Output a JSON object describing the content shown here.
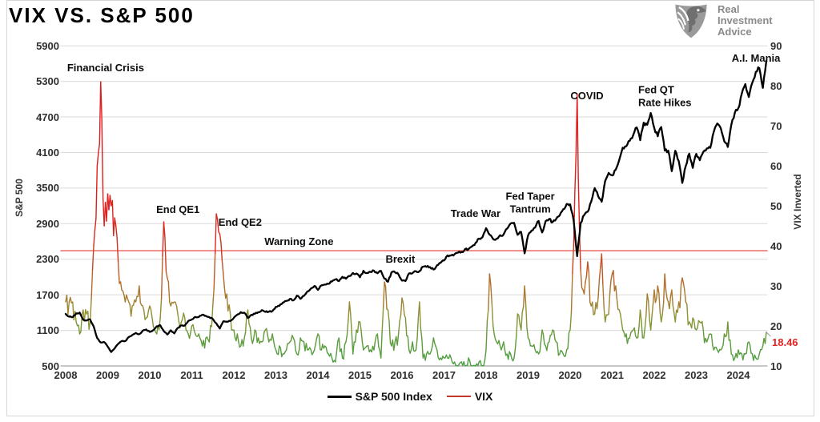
{
  "header": {
    "title": "VIX VS. S&P 500",
    "logo": {
      "line1": "Real",
      "line2": "Investment",
      "line3": "Advice"
    }
  },
  "legend": [
    {
      "label": "S&P 500 Index",
      "color": "#000000",
      "thickness": 3
    },
    {
      "label": "VIX",
      "color": "#c0392b",
      "thickness": 2
    }
  ],
  "chart_data": {
    "type": "line",
    "title": "VIX VS. S&P 500",
    "x_axis": {
      "ticks": [
        2008,
        2009,
        2010,
        2011,
        2012,
        2013,
        2014,
        2015,
        2016,
        2017,
        2018,
        2019,
        2020,
        2021,
        2022,
        2023,
        2024
      ],
      "start_year": 2008,
      "points_per_year": 12
    },
    "left_axis": {
      "label": "S&P 500",
      "range": [
        500,
        5900
      ],
      "ticks": [
        5900,
        5300,
        4700,
        4100,
        3500,
        2900,
        2300,
        1700,
        1100,
        500
      ]
    },
    "right_axis": {
      "label": "VIX Inverted",
      "range": [
        10,
        90
      ],
      "ticks": [
        90,
        80,
        70,
        60,
        50,
        40,
        30,
        20,
        10
      ]
    },
    "grid": "horizontal",
    "grid_color": "#dadada",
    "baseline_color": "#8f8f8f",
    "legend_position": "bottom-center",
    "series": [
      {
        "name": "S&P 500 Index",
        "axis": "left",
        "color": "#000000",
        "values": [
          1378,
          1331,
          1323,
          1386,
          1400,
          1280,
          1267,
          1283,
          1166,
          969,
          896,
          903,
          826,
          735,
          798,
          873,
          919,
          919,
          987,
          1021,
          1057,
          1036,
          1096,
          1115,
          1074,
          1104,
          1169,
          1187,
          1089,
          1031,
          1102,
          1049,
          1141,
          1183,
          1181,
          1258,
          1286,
          1327,
          1326,
          1364,
          1345,
          1321,
          1292,
          1219,
          1131,
          1253,
          1247,
          1258,
          1312,
          1366,
          1408,
          1398,
          1310,
          1362,
          1379,
          1407,
          1441,
          1412,
          1416,
          1426,
          1498,
          1515,
          1569,
          1598,
          1631,
          1606,
          1686,
          1633,
          1682,
          1757,
          1806,
          1848,
          1783,
          1859,
          1872,
          1884,
          1924,
          1960,
          1931,
          2003,
          1972,
          2018,
          2068,
          2059,
          1995,
          2105,
          2068,
          2086,
          2107,
          2063,
          2104,
          1972,
          1920,
          2079,
          2080,
          2044,
          1940,
          1932,
          2060,
          2065,
          2097,
          2099,
          2174,
          2171,
          2168,
          2126,
          2199,
          2239,
          2279,
          2364,
          2363,
          2384,
          2412,
          2423,
          2470,
          2472,
          2519,
          2575,
          2648,
          2674,
          2824,
          2714,
          2641,
          2648,
          2705,
          2718,
          2816,
          2902,
          2914,
          2712,
          2760,
          2400,
          2704,
          2785,
          2834,
          2946,
          2752,
          2942,
          2980,
          2926,
          2977,
          3038,
          3141,
          3231,
          3226,
          2954,
          2350,
          2912,
          3044,
          3100,
          3271,
          3500,
          3363,
          3270,
          3622,
          3756,
          3714,
          3811,
          3973,
          4181,
          4204,
          4298,
          4395,
          4523,
          4308,
          4605,
          4567,
          4766,
          4516,
          4374,
          4530,
          4132,
          4132,
          3785,
          4130,
          3955,
          3586,
          3872,
          4080,
          3840,
          4077,
          3970,
          4109,
          4169,
          4180,
          4450,
          4589,
          4508,
          4288,
          4194,
          4568,
          4770,
          4846,
          5096,
          5254,
          5036,
          5278,
          5460,
          5522,
          5190,
          5650
        ]
      },
      {
        "name": "VIX",
        "axis": "right",
        "color_by_value": true,
        "values": [
          26,
          26,
          26,
          21,
          18,
          24,
          23,
          21,
          40,
          60,
          81,
          45,
          53,
          50,
          47,
          36,
          29,
          26,
          26,
          25,
          26,
          30,
          25,
          22,
          25,
          20,
          18,
          22,
          46,
          32,
          25,
          26,
          23,
          21,
          22,
          18,
          20,
          18,
          18,
          15,
          17,
          16,
          25,
          48,
          43,
          33,
          28,
          23,
          19,
          18,
          15,
          17,
          24,
          17,
          19,
          17,
          16,
          19,
          16,
          18,
          14,
          15,
          13,
          14,
          16,
          17,
          13,
          17,
          16,
          14,
          14,
          14,
          18,
          14,
          15,
          13,
          12,
          11,
          17,
          12,
          16,
          26,
          13,
          19,
          21,
          14,
          15,
          14,
          14,
          18,
          12,
          31,
          24,
          15,
          16,
          18,
          27,
          22,
          14,
          16,
          14,
          26,
          12,
          13,
          13,
          17,
          14,
          12,
          12,
          12,
          12,
          11,
          10,
          11,
          10,
          12,
          10,
          10,
          11,
          10,
          14,
          33,
          20,
          16,
          15,
          16,
          13,
          13,
          12,
          23,
          19,
          30,
          17,
          15,
          14,
          13,
          19,
          15,
          16,
          19,
          16,
          13,
          13,
          14,
          19,
          40,
          78,
          34,
          28,
          36,
          25,
          23,
          27,
          38,
          21,
          23,
          33,
          30,
          24,
          19,
          18,
          17,
          19,
          17,
          24,
          17,
          28,
          19,
          29,
          30,
          21,
          33,
          26,
          29,
          21,
          26,
          32,
          26,
          21,
          22,
          19,
          21,
          19,
          16,
          18,
          14,
          14,
          14,
          18,
          21,
          13,
          12,
          14,
          13,
          13,
          16,
          13,
          12,
          13,
          15,
          18.46
        ]
      }
    ],
    "vix_color_stops": [
      [
        10,
        "#4ba044"
      ],
      [
        17,
        "#5f9b3a"
      ],
      [
        22,
        "#8c9434"
      ],
      [
        27,
        "#a97b2f"
      ],
      [
        33,
        "#bb5f27"
      ],
      [
        39,
        "#d03220"
      ],
      [
        50,
        "#e01e1e"
      ],
      [
        90,
        "#e41818"
      ]
    ],
    "warning_line": {
      "label": "Warning Zone",
      "right_axis_value": 38.8,
      "color": "#e53935"
    },
    "last_value_label": {
      "text": "18.46",
      "value": 18.46,
      "color": "#e02424"
    },
    "annotations": [
      {
        "label": "Financial Crisis",
        "year": 2008.95,
        "value": 5520,
        "align": "center"
      },
      {
        "label": "End QE1",
        "year": 2010.67,
        "value": 3130,
        "align": "center"
      },
      {
        "label": "End QE2",
        "year": 2012.15,
        "value": 2920,
        "align": "center"
      },
      {
        "label": "Warning Zone",
        "year": 2013.55,
        "value": 2590,
        "align": "center"
      },
      {
        "label": "Brexit",
        "year": 2015.96,
        "value": 2300,
        "align": "center"
      },
      {
        "label": "Trade War",
        "year": 2017.75,
        "value": 3060,
        "align": "center"
      },
      {
        "label": "Fed Taper\nTantrum",
        "year": 2019.05,
        "value": 3250,
        "align": "center"
      },
      {
        "label": "COVID",
        "year": 2020.4,
        "value": 5050,
        "align": "center"
      },
      {
        "label": "Fed QT\nRate Hikes",
        "year": 2021.62,
        "value": 5050,
        "align": "left"
      },
      {
        "label": "A.I. Mania",
        "year": 2024.42,
        "value": 5680,
        "align": "center"
      }
    ]
  }
}
